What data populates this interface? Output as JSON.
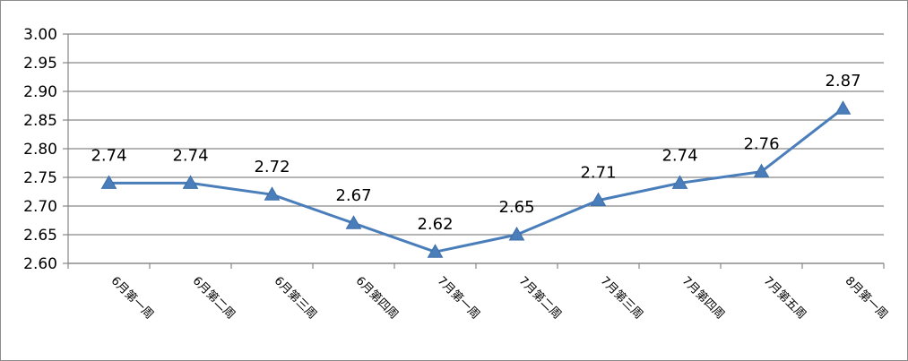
{
  "chart_data": {
    "type": "line",
    "title": "",
    "xlabel": "",
    "ylabel": "",
    "ylim": [
      2.6,
      3.0
    ],
    "y_ticks": [
      "2.60",
      "2.65",
      "2.70",
      "2.75",
      "2.80",
      "2.85",
      "2.90",
      "2.95",
      "3.00"
    ],
    "grid": true,
    "legend": "none",
    "categories": [
      "6月第一周",
      "6月第二周",
      "6月第三周",
      "6月第四周",
      "7月第一周",
      "7月第二周",
      "7月第三周",
      "7月第四周",
      "7月第五周",
      "8月第一周"
    ],
    "series": [
      {
        "values": [
          2.74,
          2.74,
          2.72,
          2.67,
          2.62,
          2.65,
          2.71,
          2.74,
          2.76,
          2.87
        ],
        "labels": [
          "2.74",
          "2.74",
          "2.72",
          "2.67",
          "2.62",
          "2.65",
          "2.71",
          "2.74",
          "2.76",
          "2.87"
        ],
        "color": "#4a7ebb",
        "marker": "triangle"
      }
    ]
  }
}
